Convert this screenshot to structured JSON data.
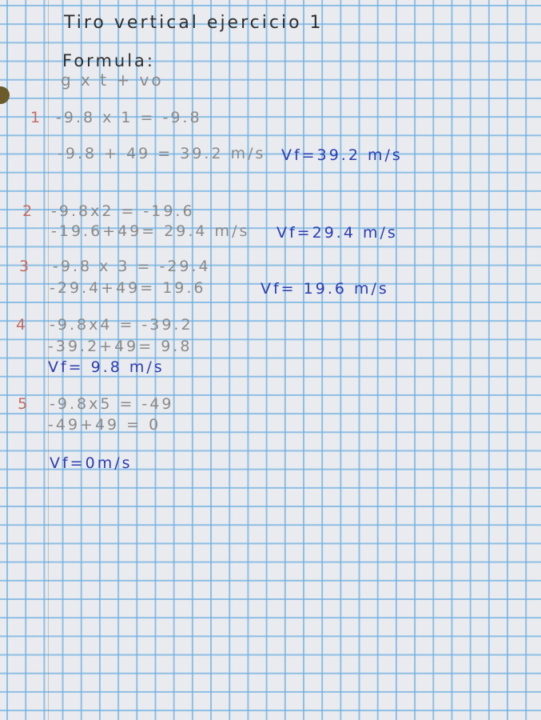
{
  "title": "Tiro vertical ejercicio 1",
  "formula_label": "Formula:",
  "formula": "g x t + vo",
  "exercises": [
    {
      "number": "1",
      "line1": "-9.8 x 1 = -9.8",
      "line2": "-9.8 + 49 = 39.2 m/s",
      "result": "Vf=39.2 m/s"
    },
    {
      "number": "2",
      "line1": "-9.8x2 = -19.6",
      "line2": "-19.6+49= 29.4 m/s",
      "result": "Vf=29.4 m/s"
    },
    {
      "number": "3",
      "line1": "-9.8 x 3 = -29.4",
      "line2": "-29.4+49= 19.6",
      "result": "Vf= 19.6 m/s"
    },
    {
      "number": "4",
      "line1": "-9.8x4 = -39.2",
      "line2": "-39.2+49= 9.8",
      "result": "Vf= 9.8 m/s"
    },
    {
      "number": "5",
      "line1": "-9.8x5 = -49",
      "line2": "-49+49 = 0",
      "result": "Vf=0m/s"
    }
  ],
  "colors": {
    "paper": "#e9ebee",
    "grid": "#6eafe1",
    "pencil": "#8a8a8a",
    "number": "#c46a62",
    "ink": "#2a3db4"
  }
}
